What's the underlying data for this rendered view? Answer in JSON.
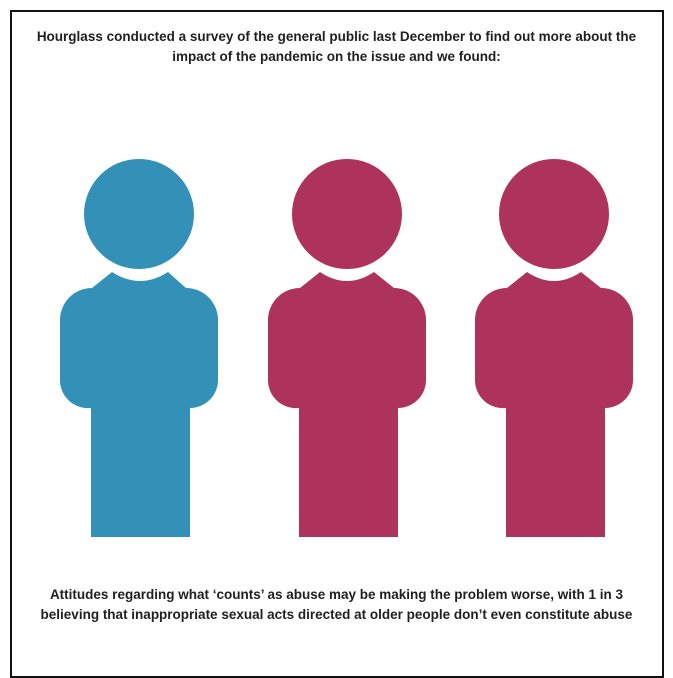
{
  "intro_text": "Hourglass conducted a survey of the general public last December to find out more about the impact of the pandemic on the issue and we found:",
  "finding_text": "Attitudes regarding what ‘counts’ as abuse may be making the problem worse, with 1 in 3 believing that inappropriate sexual acts directed at older people don’t even constitute abuse",
  "figures": [
    {
      "color": "#3391b8",
      "highlighted": true
    },
    {
      "color": "#ad335d",
      "highlighted": false
    },
    {
      "color": "#ad335d",
      "highlighted": false
    }
  ],
  "ratio": {
    "highlighted": 1,
    "total": 3
  }
}
